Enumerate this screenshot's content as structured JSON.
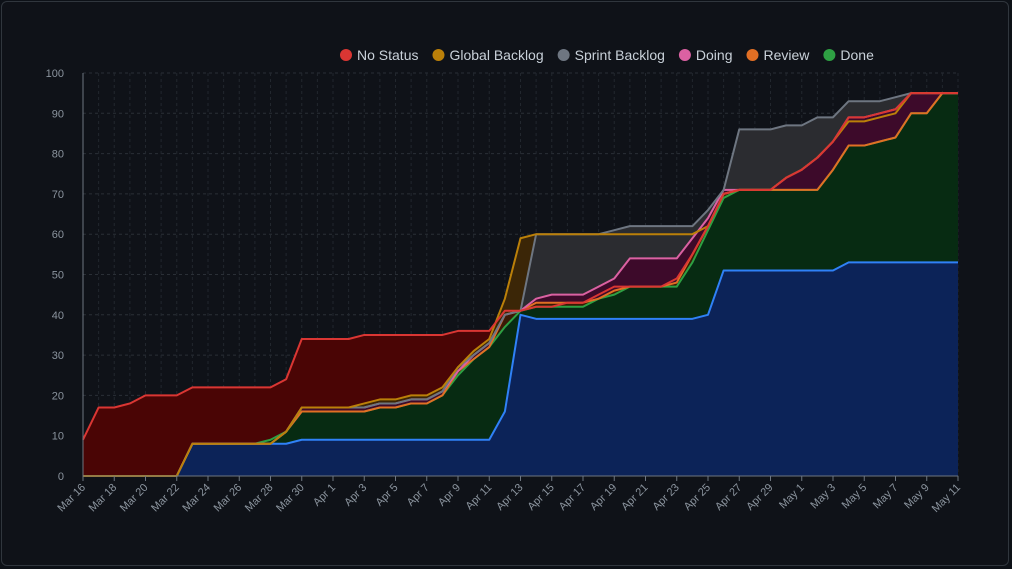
{
  "chart_data": {
    "type": "area",
    "title": "",
    "xlabel": "",
    "ylabel": "",
    "ylim": [
      0,
      100
    ],
    "grid": true,
    "legend_position": "top-right",
    "yticks": [
      0,
      10,
      20,
      30,
      40,
      50,
      60,
      70,
      80,
      90,
      100
    ],
    "xtick_labels": [
      "Mar 16",
      "Mar 18",
      "Mar 20",
      "Mar 22",
      "Mar 24",
      "Mar 26",
      "Mar 28",
      "Mar 30",
      "Apr 1",
      "Apr 3",
      "Apr 5",
      "Apr 7",
      "Apr 9",
      "Apr 11",
      "Apr 13",
      "Apr 15",
      "Apr 17",
      "Apr 19",
      "Apr 21",
      "Apr 23",
      "Apr 25",
      "Apr 27",
      "Apr 29",
      "May 1",
      "May 3",
      "May 5",
      "May 7",
      "May 9",
      "May 11"
    ],
    "x": [
      "Mar 16",
      "Mar 17",
      "Mar 18",
      "Mar 19",
      "Mar 20",
      "Mar 21",
      "Mar 22",
      "Mar 23",
      "Mar 24",
      "Mar 25",
      "Mar 26",
      "Mar 27",
      "Mar 28",
      "Mar 29",
      "Mar 30",
      "Mar 31",
      "Apr 1",
      "Apr 2",
      "Apr 3",
      "Apr 4",
      "Apr 5",
      "Apr 6",
      "Apr 7",
      "Apr 8",
      "Apr 9",
      "Apr 10",
      "Apr 11",
      "Apr 12",
      "Apr 13",
      "Apr 14",
      "Apr 15",
      "Apr 16",
      "Apr 17",
      "Apr 18",
      "Apr 19",
      "Apr 20",
      "Apr 21",
      "Apr 22",
      "Apr 23",
      "Apr 24",
      "Apr 25",
      "Apr 26",
      "Apr 27",
      "Apr 28",
      "Apr 29",
      "Apr 30",
      "May 1",
      "May 2",
      "May 3",
      "May 4",
      "May 5",
      "May 6",
      "May 7",
      "May 8",
      "May 9",
      "May 10",
      "May 11"
    ],
    "series": [
      {
        "name": "No Status",
        "color": "#da3633",
        "fill": "#4a0505",
        "values": [
          9,
          17,
          17,
          18,
          20,
          20,
          20,
          22,
          22,
          22,
          22,
          22,
          22,
          24,
          34,
          34,
          34,
          34,
          35,
          35,
          35,
          35,
          35,
          35,
          36,
          36,
          36,
          41,
          41,
          42,
          42,
          43,
          43,
          45,
          47,
          47,
          47,
          47,
          49,
          55,
          62,
          70,
          71,
          71,
          71,
          74,
          76,
          79,
          83,
          89,
          89,
          90,
          91,
          95,
          95,
          95,
          95
        ]
      },
      {
        "name": "Global Backlog",
        "color": "#bb8009",
        "fill": "#3b2607",
        "values": [
          0,
          0,
          0,
          0,
          0,
          0,
          0,
          8,
          8,
          8,
          8,
          8,
          8,
          11,
          17,
          17,
          17,
          17,
          18,
          19,
          19,
          20,
          20,
          22,
          27,
          31,
          34,
          44,
          59,
          60,
          60,
          60,
          60,
          60,
          60,
          60,
          60,
          60,
          60,
          60,
          62,
          70,
          71,
          71,
          71,
          74,
          76,
          79,
          83,
          88,
          88,
          89,
          90,
          95,
          95,
          95,
          95
        ]
      },
      {
        "name": "Sprint Backlog",
        "color": "#6e7681",
        "fill": "#2b2c30",
        "values": [
          0,
          0,
          0,
          0,
          0,
          0,
          0,
          8,
          8,
          8,
          8,
          8,
          8,
          11,
          17,
          17,
          17,
          17,
          17,
          18,
          18,
          19,
          19,
          21,
          27,
          30,
          33,
          40,
          41,
          60,
          60,
          60,
          60,
          60,
          61,
          62,
          62,
          62,
          62,
          62,
          66,
          71,
          86,
          86,
          86,
          87,
          87,
          89,
          89,
          93,
          93,
          93,
          94,
          95,
          95,
          95,
          95
        ]
      },
      {
        "name": "Doing",
        "color": "#db61a2",
        "fill": "#3d0a2a",
        "values": [
          0,
          0,
          0,
          0,
          0,
          0,
          0,
          8,
          8,
          8,
          8,
          8,
          8,
          11,
          17,
          17,
          17,
          17,
          17,
          18,
          18,
          19,
          19,
          21,
          26,
          30,
          33,
          40,
          41,
          44,
          45,
          45,
          45,
          47,
          49,
          54,
          54,
          54,
          54,
          59,
          64,
          71,
          71,
          71,
          71,
          74,
          76,
          79,
          83,
          89,
          89,
          90,
          91,
          95,
          95,
          95,
          95
        ]
      },
      {
        "name": "Review",
        "color": "#e16f24",
        "fill": "#3a1a06",
        "values": [
          0,
          0,
          0,
          0,
          0,
          0,
          0,
          8,
          8,
          8,
          8,
          8,
          8,
          11,
          16,
          16,
          16,
          16,
          16,
          17,
          17,
          18,
          18,
          20,
          26,
          29,
          32,
          40,
          41,
          43,
          43,
          43,
          43,
          44,
          46,
          47,
          47,
          47,
          48,
          55,
          62,
          70,
          71,
          71,
          71,
          71,
          71,
          71,
          76,
          82,
          82,
          83,
          84,
          90,
          90,
          95,
          95
        ]
      },
      {
        "name": "Done",
        "color": "#2ea043",
        "fill": "#072b12",
        "values": [
          0,
          0,
          0,
          0,
          0,
          0,
          0,
          8,
          8,
          8,
          8,
          8,
          9,
          11,
          16,
          16,
          16,
          16,
          16,
          17,
          17,
          18,
          18,
          20,
          25,
          29,
          32,
          37,
          41,
          42,
          42,
          42,
          42,
          44,
          45,
          47,
          47,
          47,
          47,
          53,
          61,
          69,
          71,
          71,
          71,
          71,
          71,
          71,
          76,
          82,
          82,
          83,
          84,
          90,
          90,
          95,
          95
        ]
      },
      {
        "name": "",
        "color": "#2f81f7",
        "fill": "#0c2358",
        "values": [
          0,
          0,
          0,
          0,
          0,
          0,
          0,
          8,
          8,
          8,
          8,
          8,
          8,
          8,
          9,
          9,
          9,
          9,
          9,
          9,
          9,
          9,
          9,
          9,
          9,
          9,
          9,
          16,
          40,
          39,
          39,
          39,
          39,
          39,
          39,
          39,
          39,
          39,
          39,
          39,
          40,
          51,
          51,
          51,
          51,
          51,
          51,
          51,
          51,
          53,
          53,
          53,
          53,
          53,
          53,
          53,
          53
        ]
      }
    ]
  }
}
